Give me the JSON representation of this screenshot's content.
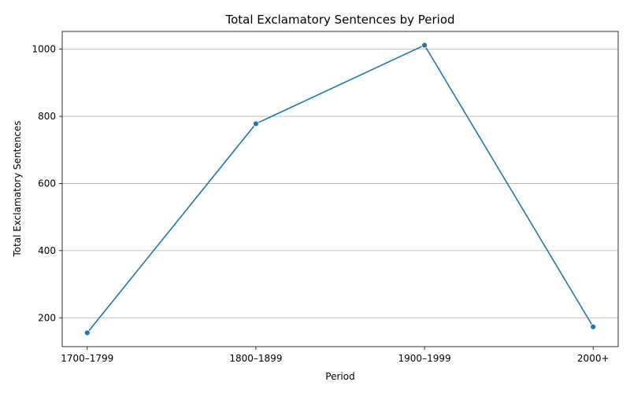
{
  "chart_data": {
    "type": "line",
    "title": "Total Exclamatory Sentences by Period",
    "xlabel": "Period",
    "ylabel": "Total Exclamatory Sentences",
    "categories": [
      "1700–1799",
      "1800–1899",
      "1900–1999",
      "2000+"
    ],
    "series": [
      {
        "values": [
          155,
          778,
          1012,
          173
        ]
      }
    ],
    "ylim": [
      114,
      1053
    ],
    "yticks": [
      200,
      400,
      600,
      800,
      1000
    ],
    "grid": "horizontal",
    "line_color": "#1f77b4",
    "axis_color": "#000000",
    "grid_color": "#b0b0b0"
  }
}
